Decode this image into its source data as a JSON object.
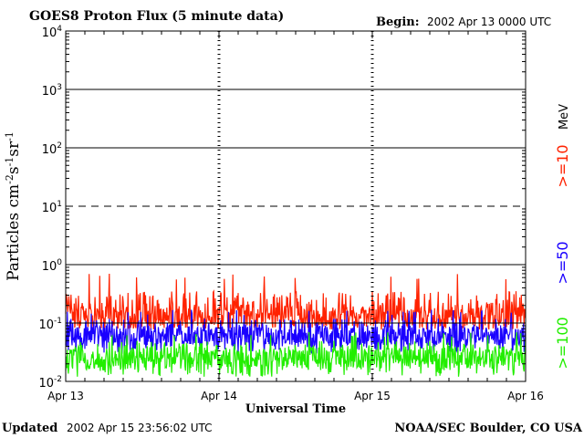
{
  "header": {
    "title": "GOES8 Proton Flux (5 minute data)",
    "begin_label": "Begin:",
    "begin_value": "2002 Apr 13 0000 UTC"
  },
  "footer": {
    "updated_label": "Updated",
    "updated_value": "2002 Apr 15 23:56:02 UTC",
    "credit": "NOAA/SEC Boulder, CO USA"
  },
  "chart_data": {
    "type": "line",
    "title": "GOES8 Proton Flux (5 minute data)",
    "xlabel": "Universal Time",
    "ylabel": "Particles cm-2s-1sr-1",
    "yscale": "log",
    "ylim": [
      0.01,
      10000
    ],
    "xlim_days": [
      0,
      3
    ],
    "y_ticks": [
      {
        "exp": "-2",
        "value": 0.01
      },
      {
        "exp": "-1",
        "value": 0.1
      },
      {
        "exp": "0",
        "value": 1
      },
      {
        "exp": "1",
        "value": 10
      },
      {
        "exp": "2",
        "value": 100
      },
      {
        "exp": "3",
        "value": 1000
      },
      {
        "exp": "4",
        "value": 10000
      }
    ],
    "tick_base": "10",
    "x_ticks": [
      {
        "label": "Apr 13",
        "day": 0
      },
      {
        "label": "Apr 14",
        "day": 1
      },
      {
        "label": "Apr 15",
        "day": 2
      },
      {
        "label": "Apr 16",
        "day": 3
      }
    ],
    "thresholds": [
      {
        "value": 10,
        "style": "dashed"
      },
      {
        "value": 1,
        "style": "solid"
      }
    ],
    "unit_label": "MeV",
    "series": [
      {
        "name": ">=10",
        "color": "#ff2200",
        "typical_min": 0.08,
        "typical_max": 0.35,
        "peak": 0.7,
        "baseline": 0.12
      },
      {
        "name": ">=50",
        "color": "#1a00ff",
        "typical_min": 0.03,
        "typical_max": 0.12,
        "peak": 0.17,
        "baseline": 0.06
      },
      {
        "name": ">=100",
        "color": "#22ee00",
        "typical_min": 0.012,
        "typical_max": 0.05,
        "peak": 0.07,
        "baseline": 0.025
      }
    ]
  }
}
